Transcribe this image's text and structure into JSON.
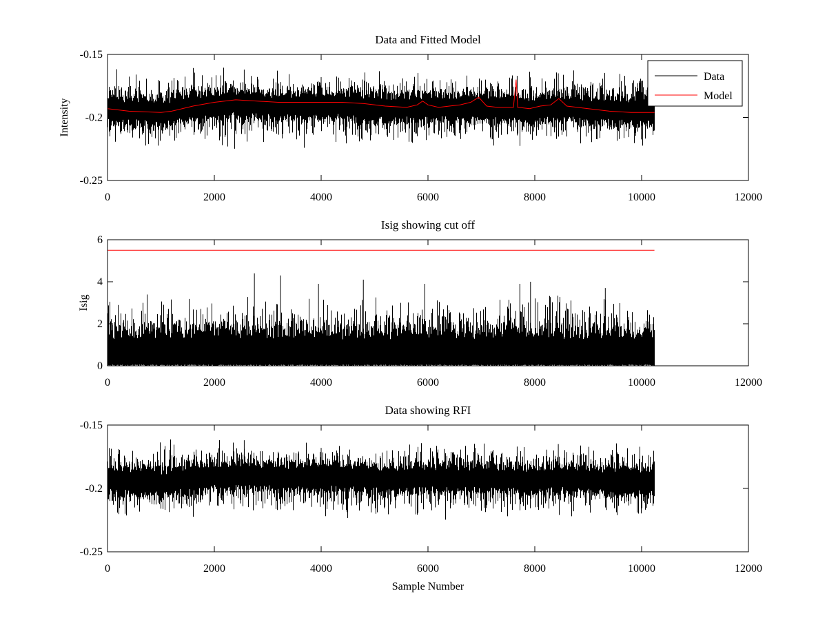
{
  "figure": {
    "background": "#ffffff",
    "data_color": "#000000",
    "model_color": "#ff0000",
    "x_axis_label": "Sample Number"
  },
  "chart_data": [
    {
      "type": "line",
      "title": "Data and Fitted Model",
      "xlabel": "",
      "ylabel": "Intensity",
      "xlim": [
        0,
        12000
      ],
      "ylim": [
        -0.25,
        -0.15
      ],
      "y_reversed": true,
      "xticks": [
        0,
        2000,
        4000,
        6000,
        8000,
        10000,
        12000
      ],
      "yticks": [
        -0.15,
        -0.2,
        -0.25
      ],
      "xtick_labels": [
        "0",
        "2000",
        "4000",
        "6000",
        "8000",
        "10000",
        "12000"
      ],
      "ytick_labels": [
        "-0.15",
        "-0.2",
        "-0.25"
      ],
      "grid": false,
      "legend": {
        "placement": "top-right",
        "entries": [
          "Data",
          "Model"
        ]
      },
      "series": [
        {
          "name": "Data",
          "color": "#000000",
          "kind": "noise",
          "x_range": [
            0,
            10240
          ],
          "n_points": 10240,
          "baseline": [
            [
              0,
              -0.193
            ],
            [
              500,
              -0.196
            ],
            [
              1100,
              -0.197
            ],
            [
              1500,
              -0.192
            ],
            [
              2000,
              -0.188
            ],
            [
              2500,
              -0.186
            ],
            [
              3000,
              -0.189
            ],
            [
              3500,
              -0.189
            ],
            [
              4000,
              -0.188
            ],
            [
              4500,
              -0.189
            ],
            [
              5000,
              -0.191
            ],
            [
              5500,
              -0.192
            ],
            [
              6000,
              -0.191
            ],
            [
              6500,
              -0.191
            ],
            [
              7000,
              -0.191
            ],
            [
              7500,
              -0.192
            ],
            [
              8000,
              -0.193
            ],
            [
              8500,
              -0.191
            ],
            [
              9000,
              -0.193
            ],
            [
              9500,
              -0.195
            ],
            [
              10240,
              -0.196
            ]
          ],
          "min_range": [
            -0.225,
            -0.21
          ],
          "max_range": [
            -0.178,
            -0.16
          ],
          "spikes": [
            [
              2560,
              -0.162
            ],
            [
              7670,
              -0.167
            ],
            [
              8440,
              -0.165
            ],
            [
              4000,
              -0.168
            ]
          ]
        },
        {
          "name": "Model",
          "color": "#ff0000",
          "kind": "line",
          "x": [
            0,
            400,
            1000,
            1200,
            1600,
            2000,
            2400,
            2800,
            3200,
            3600,
            4000,
            4400,
            4800,
            5200,
            5600,
            5800,
            5900,
            6000,
            6200,
            6400,
            6600,
            6800,
            6950,
            7100,
            7300,
            7600,
            7650,
            7680,
            7700,
            7900,
            8100,
            8300,
            8450,
            8600,
            8800,
            9000,
            9400,
            9800,
            10240
          ],
          "y": [
            -0.193,
            -0.195,
            -0.196,
            -0.195,
            -0.191,
            -0.188,
            -0.186,
            -0.187,
            -0.188,
            -0.188,
            -0.188,
            -0.188,
            -0.189,
            -0.191,
            -0.192,
            -0.19,
            -0.187,
            -0.19,
            -0.192,
            -0.191,
            -0.19,
            -0.188,
            -0.184,
            -0.191,
            -0.192,
            -0.192,
            -0.17,
            -0.192,
            -0.192,
            -0.193,
            -0.191,
            -0.19,
            -0.185,
            -0.191,
            -0.192,
            -0.193,
            -0.195,
            -0.196,
            -0.196
          ]
        }
      ]
    },
    {
      "type": "line",
      "title": "Isig showing cut off",
      "xlabel": "",
      "ylabel": "Isig",
      "xlim": [
        0,
        12000
      ],
      "ylim": [
        0,
        6
      ],
      "y_reversed": false,
      "xticks": [
        0,
        2000,
        4000,
        6000,
        8000,
        10000,
        12000
      ],
      "yticks": [
        0,
        2,
        4,
        6
      ],
      "xtick_labels": [
        "0",
        "2000",
        "4000",
        "6000",
        "8000",
        "10000",
        "12000"
      ],
      "ytick_labels": [
        "0",
        "2",
        "4",
        "6"
      ],
      "grid": false,
      "series": [
        {
          "color": "#000000",
          "kind": "noise",
          "x_range": [
            0,
            10240
          ],
          "n_points": 10240,
          "baseline": [
            [
              0,
              0.8
            ],
            [
              10240,
              0.8
            ]
          ],
          "min_range": [
            0.0,
            0.05
          ],
          "max_range": [
            1.8,
            3.5
          ],
          "spikes": [
            [
              2750,
              4.4
            ],
            [
              3240,
              4.3
            ],
            [
              4790,
              4.1
            ],
            [
              7920,
              4.0
            ],
            [
              7720,
              3.9
            ],
            [
              3950,
              3.9
            ],
            [
              5940,
              3.9
            ],
            [
              9320,
              3.7
            ]
          ]
        },
        {
          "color": "#ff0000",
          "kind": "line",
          "x": [
            0,
            10240
          ],
          "y": [
            5.5,
            5.5
          ]
        }
      ]
    },
    {
      "type": "line",
      "title": "Data showing RFI",
      "xlabel": "Sample Number",
      "ylabel": "",
      "xlim": [
        0,
        12000
      ],
      "ylim": [
        -0.25,
        -0.15
      ],
      "y_reversed": true,
      "xticks": [
        0,
        2000,
        4000,
        6000,
        8000,
        10000,
        12000
      ],
      "yticks": [
        -0.15,
        -0.2,
        -0.25
      ],
      "xtick_labels": [
        "0",
        "2000",
        "4000",
        "6000",
        "8000",
        "10000",
        "12000"
      ],
      "ytick_labels": [
        "-0.15",
        "-0.2",
        "-0.25"
      ],
      "grid": false,
      "series": [
        {
          "color": "#000000",
          "kind": "noise",
          "x_range": [
            0,
            10240
          ],
          "n_points": 10240,
          "baseline": [
            [
              0,
              -0.193
            ],
            [
              500,
              -0.196
            ],
            [
              1100,
              -0.197
            ],
            [
              1500,
              -0.192
            ],
            [
              2000,
              -0.188
            ],
            [
              2500,
              -0.186
            ],
            [
              3000,
              -0.189
            ],
            [
              3500,
              -0.189
            ],
            [
              4000,
              -0.188
            ],
            [
              4500,
              -0.189
            ],
            [
              5000,
              -0.191
            ],
            [
              5500,
              -0.192
            ],
            [
              6000,
              -0.191
            ],
            [
              6500,
              -0.191
            ],
            [
              7000,
              -0.191
            ],
            [
              7500,
              -0.192
            ],
            [
              8000,
              -0.193
            ],
            [
              8500,
              -0.191
            ],
            [
              9000,
              -0.193
            ],
            [
              9500,
              -0.195
            ],
            [
              10240,
              -0.196
            ]
          ],
          "min_range": [
            -0.225,
            -0.21
          ],
          "max_range": [
            -0.178,
            -0.16
          ],
          "spikes": [
            [
              2560,
              -0.162
            ],
            [
              7670,
              -0.167
            ],
            [
              8440,
              -0.165
            ],
            [
              4000,
              -0.168
            ]
          ]
        }
      ]
    }
  ]
}
